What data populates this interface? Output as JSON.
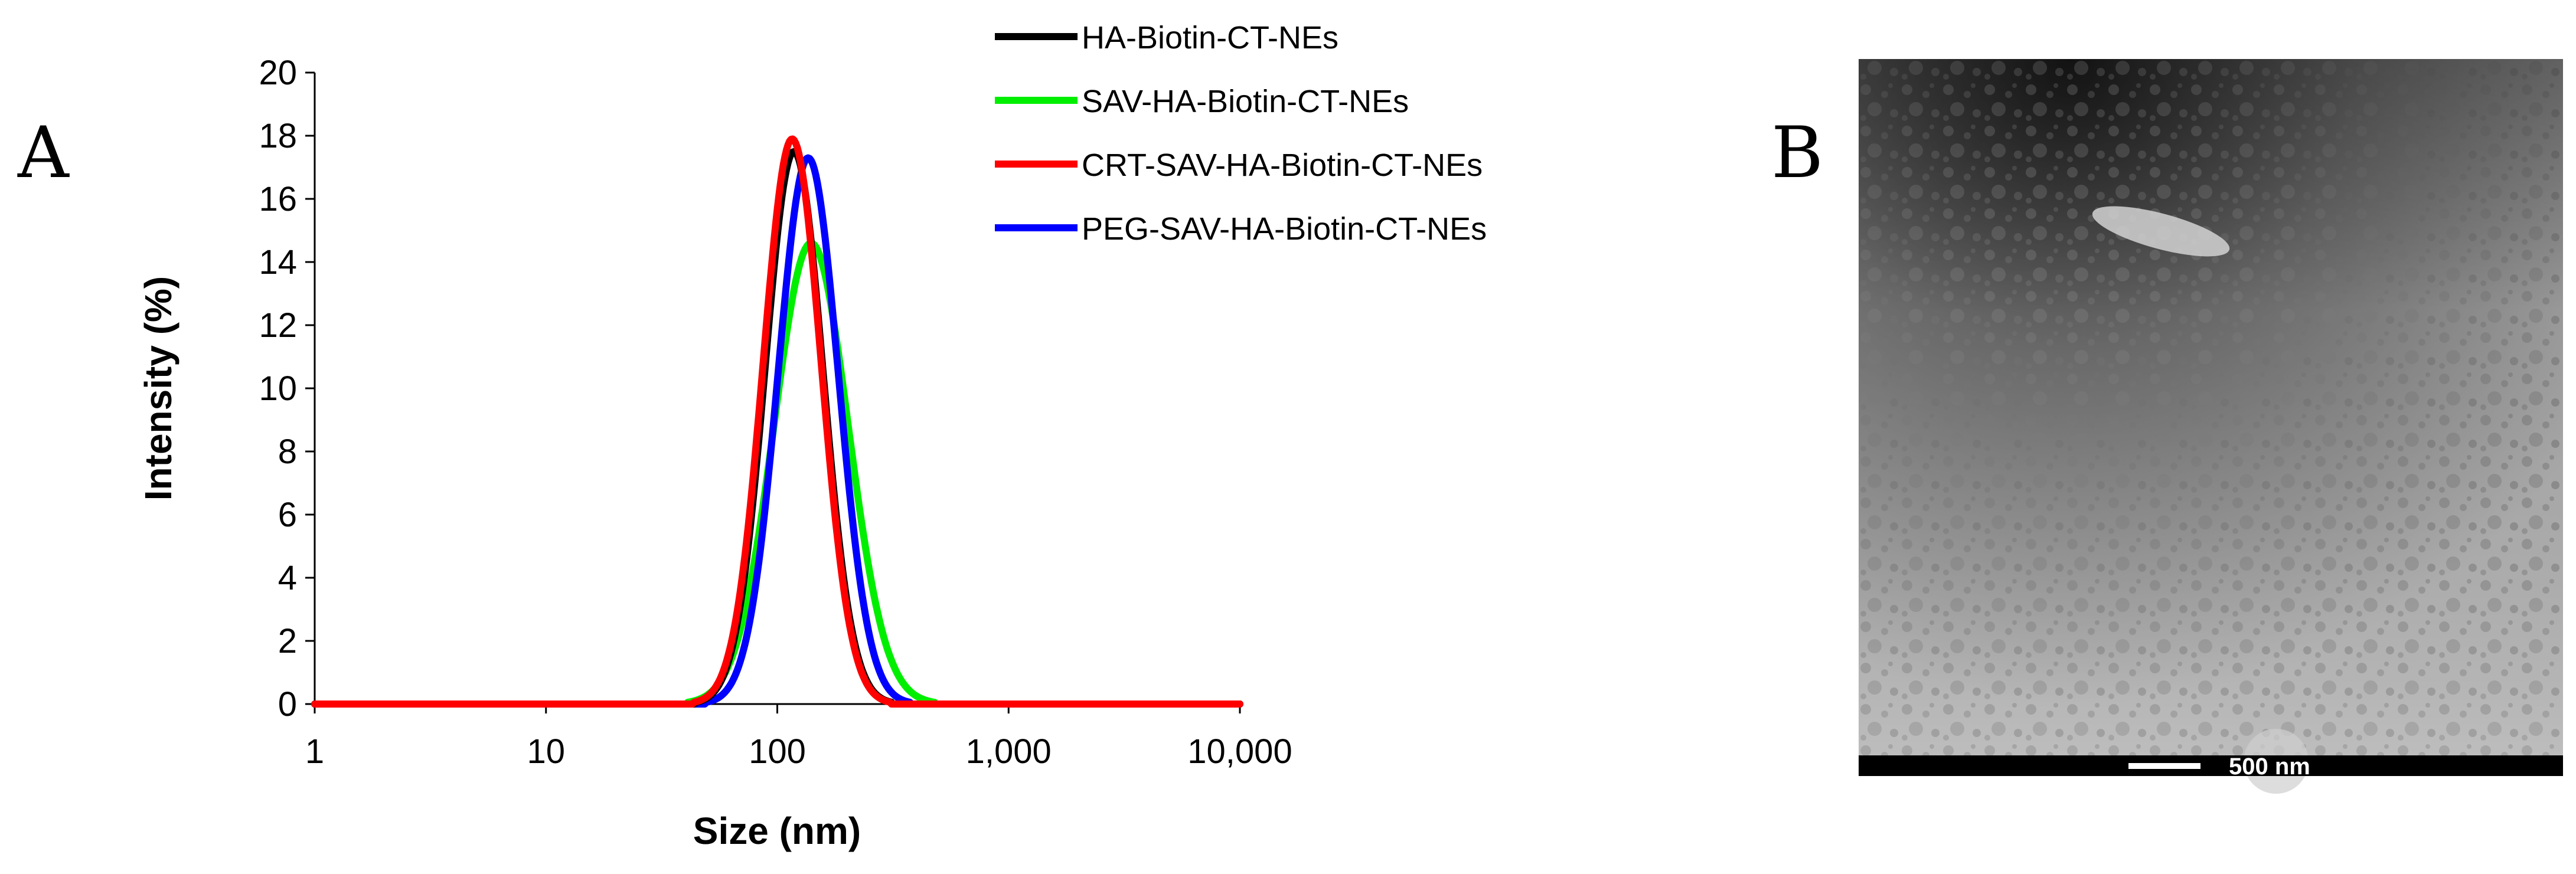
{
  "panels": {
    "a_label": "A",
    "b_label": "B"
  },
  "chart_data": {
    "type": "line",
    "title": "",
    "xlabel": "Size (nm)",
    "ylabel": "Intensity (%)",
    "xscale": "log",
    "xlim": [
      1,
      10000
    ],
    "ylim": [
      0,
      20
    ],
    "xticks": [
      1,
      10,
      100,
      1000,
      10000
    ],
    "xtick_labels": [
      "1",
      "10",
      "100",
      "1,000",
      "10,000"
    ],
    "yticks": [
      0,
      2,
      4,
      6,
      8,
      10,
      12,
      14,
      16,
      18,
      20
    ],
    "ytick_labels": [
      "0",
      "2",
      "4",
      "6",
      "8",
      "10",
      "12",
      "14",
      "16",
      "18",
      "20"
    ],
    "grid": false,
    "legend_position": "top-right",
    "series": [
      {
        "name": "HA-Biotin-CT-NEs",
        "color": "#000000",
        "peak_x": 118,
        "peak_y": 17.5,
        "log_sigma": 0.125
      },
      {
        "name": "SAV-HA-Biotin-CT-NEs",
        "color": "#00ee00",
        "peak_x": 140,
        "peak_y": 14.6,
        "log_sigma": 0.16
      },
      {
        "name": "CRT-SAV-HA-Biotin-CT-NEs",
        "color": "#ff0000",
        "peak_x": 116,
        "peak_y": 17.9,
        "log_sigma": 0.125
      },
      {
        "name": "PEG-SAV-HA-Biotin-CT-NEs",
        "color": "#0000ff",
        "peak_x": 136,
        "peak_y": 17.3,
        "log_sigma": 0.13
      }
    ]
  },
  "micrograph": {
    "scale_bar_label": "500 nm"
  }
}
